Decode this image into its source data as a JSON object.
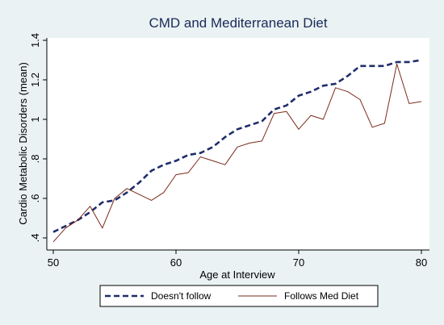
{
  "chart_data": {
    "type": "line",
    "title": "CMD and Mediterranean Diet",
    "xlabel": "Age at Interview",
    "ylabel": "Cardio Metabolic Disorders (mean)",
    "xlim": [
      50,
      80
    ],
    "ylim": [
      0.4,
      1.4
    ],
    "xticks": [
      50,
      60,
      70,
      80
    ],
    "yticks": [
      0.4,
      0.6,
      0.8,
      1,
      1.2,
      1.4
    ],
    "ytick_labels": [
      ".4",
      ".6",
      ".8",
      "1",
      "1.2",
      "1.4"
    ],
    "grid": false,
    "legend_position": "bottom",
    "series": [
      {
        "name": "Doesn't follow",
        "style": "dashed",
        "color": "#1f2d6b",
        "x": [
          50,
          51,
          52,
          53,
          54,
          55,
          56,
          57,
          58,
          59,
          60,
          61,
          62,
          63,
          64,
          65,
          66,
          67,
          68,
          69,
          70,
          71,
          72,
          73,
          74,
          75,
          76,
          77,
          78,
          79,
          80
        ],
        "values": [
          0.43,
          0.46,
          0.49,
          0.53,
          0.58,
          0.59,
          0.63,
          0.68,
          0.74,
          0.77,
          0.79,
          0.82,
          0.83,
          0.86,
          0.91,
          0.95,
          0.97,
          0.99,
          1.05,
          1.07,
          1.12,
          1.14,
          1.17,
          1.18,
          1.22,
          1.27,
          1.27,
          1.27,
          1.29,
          1.29,
          1.3
        ]
      },
      {
        "name": "Follows Med Diet",
        "style": "solid",
        "color": "#7a2a1a",
        "x": [
          50,
          51,
          52,
          53,
          54,
          55,
          56,
          57,
          58,
          59,
          60,
          61,
          62,
          63,
          64,
          65,
          66,
          67,
          68,
          69,
          70,
          71,
          72,
          73,
          74,
          75,
          76,
          77,
          78,
          79,
          80
        ],
        "values": [
          0.38,
          0.45,
          0.49,
          0.56,
          0.45,
          0.6,
          0.65,
          0.62,
          0.59,
          0.63,
          0.72,
          0.73,
          0.81,
          0.79,
          0.77,
          0.86,
          0.88,
          0.89,
          1.03,
          1.04,
          0.95,
          1.02,
          1.0,
          1.16,
          1.14,
          1.1,
          0.96,
          0.98,
          1.28,
          1.08,
          1.09
        ]
      }
    ]
  }
}
